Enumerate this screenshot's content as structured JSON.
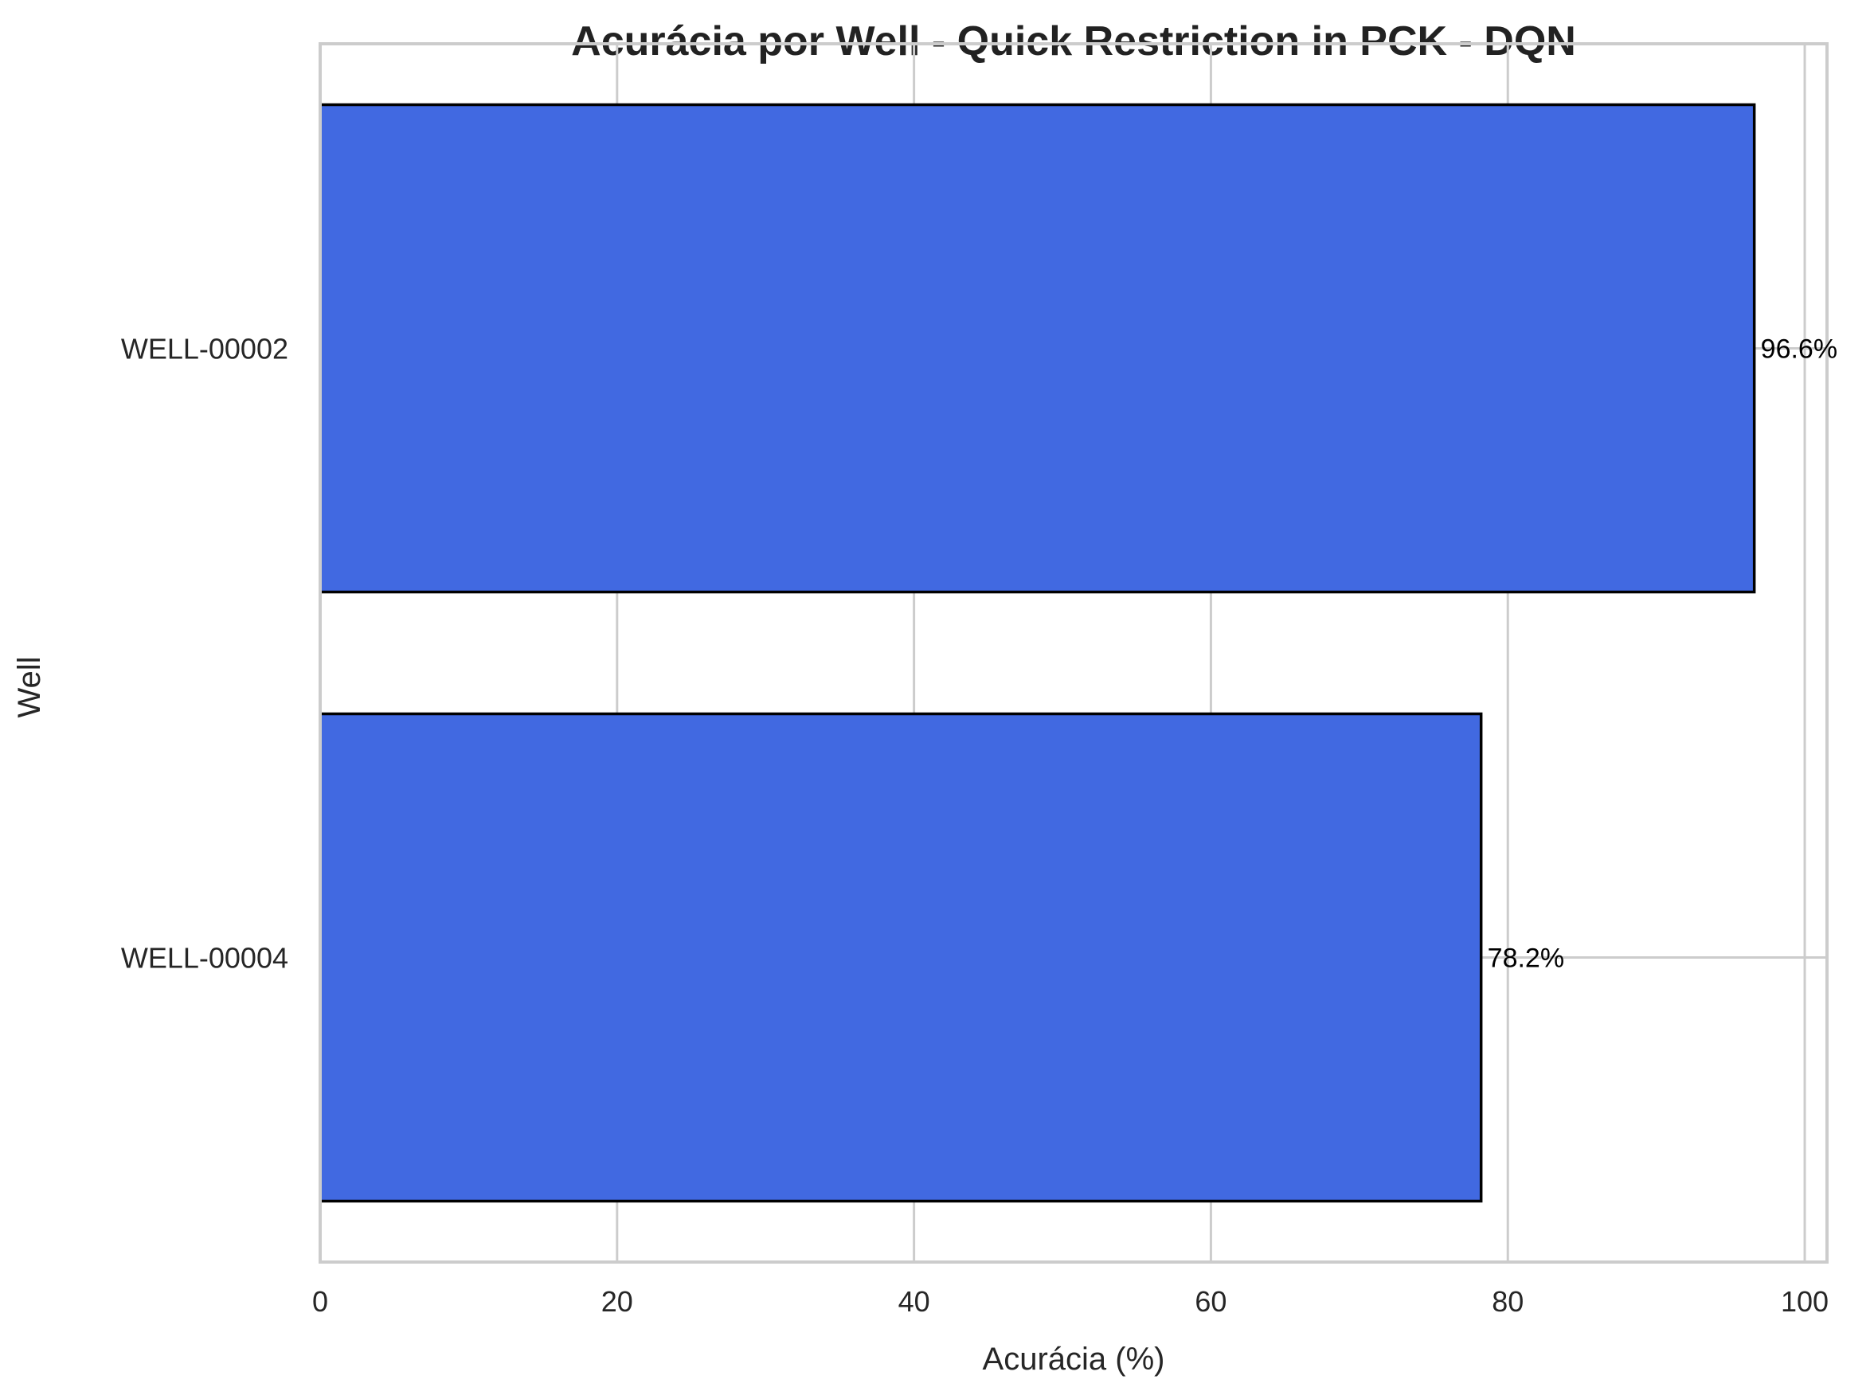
{
  "chart_data": {
    "type": "bar",
    "orientation": "horizontal",
    "title": "Acurácia por Well - Quick Restriction in PCK - DQN",
    "xlabel": "Acurácia (%)",
    "ylabel": "Well",
    "categories": [
      "WELL-00002",
      "WELL-00004"
    ],
    "values": [
      96.6,
      78.2
    ],
    "value_labels": [
      "96.6%",
      "78.2%"
    ],
    "xlim": [
      0,
      101.5
    ],
    "xticks": [
      0,
      20,
      40,
      60,
      80,
      100
    ],
    "xtick_labels": [
      "0",
      "20",
      "40",
      "60",
      "80",
      "100"
    ],
    "grid": true,
    "legend": "none",
    "colors": {
      "bar": "#4169e1",
      "bar_edge": "#000000",
      "grid": "#cccccc"
    }
  }
}
